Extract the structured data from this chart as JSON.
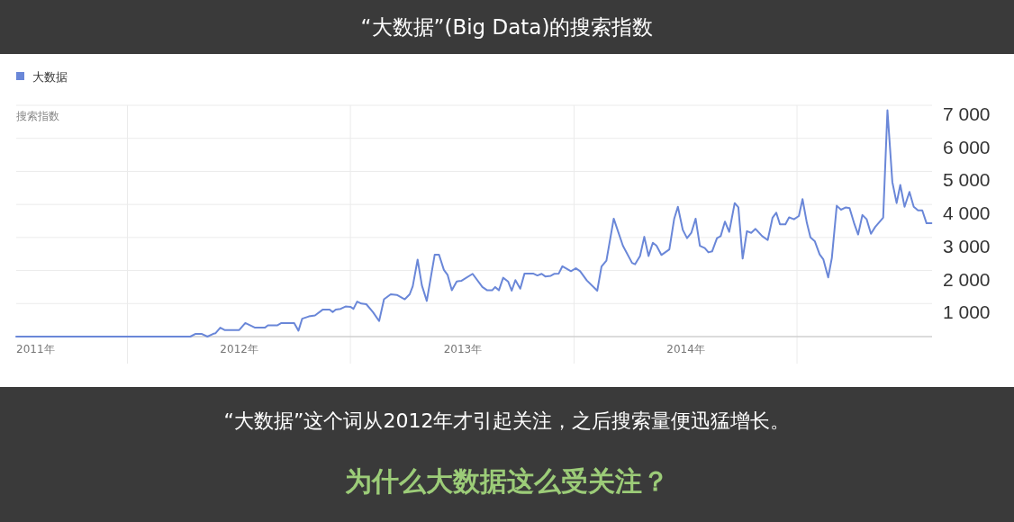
{
  "chart_data": {
    "type": "line",
    "title": "“大数据”(Big Data)的搜索指数",
    "ylabel": "搜索指数",
    "annotations": [
      "“大数据”这个词从2012年才引起关注，之后搜索量便迅猛增长。",
      "为什么大数据这么受关注？"
    ],
    "legend": "top left",
    "grid": true,
    "marker": "none",
    "line_style": "solid",
    "xlim": [
      "2011-01-01",
      "2015-02-08"
    ],
    "xticks": [
      {
        "value": "2011-01-01",
        "label": "2011年"
      },
      {
        "value": "2011-07-02",
        "label": null
      },
      {
        "value": "2012-01-01",
        "label": "2012年"
      },
      {
        "value": "2012-07-01",
        "label": null
      },
      {
        "value": "2013-01-01",
        "label": "2013年"
      },
      {
        "value": "2013-07-02",
        "label": null
      },
      {
        "value": "2014-01-01",
        "label": "2014年"
      },
      {
        "value": "2014-07-02",
        "label": null
      }
    ],
    "ylim": [
      0,
      7000
    ],
    "yticks": [
      {
        "value": 1000,
        "label": "1 000"
      },
      {
        "value": 2000,
        "label": "2 000"
      },
      {
        "value": 3000,
        "label": "3 000"
      },
      {
        "value": 4000,
        "label": "4 000"
      },
      {
        "value": 5000,
        "label": "5 000"
      },
      {
        "value": 6000,
        "label": "6 000"
      },
      {
        "value": 7000,
        "label": "7 000"
      }
    ],
    "x": [
      "2011-01-01",
      "2011-06-01",
      "2011-10-13",
      "2011-10-21",
      "2011-11-01",
      "2011-11-10",
      "2011-11-19",
      "2011-11-23",
      "2011-12-01",
      "2011-12-08",
      "2012-01-01",
      "2012-01-11",
      "2012-01-27",
      "2012-02-12",
      "2012-02-17",
      "2012-03-03",
      "2012-03-10",
      "2012-03-31",
      "2012-04-07",
      "2012-04-13",
      "2012-04-24",
      "2012-05-04",
      "2012-05-17",
      "2012-05-28",
      "2012-06-02",
      "2012-06-07",
      "2012-06-15",
      "2012-06-23",
      "2012-07-01",
      "2012-07-06",
      "2012-07-12",
      "2012-07-19",
      "2012-07-27",
      "2012-08-07",
      "2012-08-17",
      "2012-08-25",
      "2012-09-05",
      "2012-09-15",
      "2012-09-28",
      "2012-10-06",
      "2012-10-11",
      "2012-10-19",
      "2012-10-26",
      "2012-11-03",
      "2012-11-16",
      "2012-11-23",
      "2012-12-01",
      "2012-12-07",
      "2012-12-14",
      "2012-12-22",
      "2012-12-30",
      "2013-01-17",
      "2013-02-02",
      "2013-02-10",
      "2013-02-18",
      "2013-02-23",
      "2013-03-01",
      "2013-03-08",
      "2013-03-16",
      "2013-03-22",
      "2013-03-28",
      "2013-04-05",
      "2013-04-12",
      "2013-04-26",
      "2013-05-03",
      "2013-05-10",
      "2013-05-16",
      "2013-05-25",
      "2013-05-31",
      "2013-06-07",
      "2013-06-13",
      "2013-06-27",
      "2013-07-05",
      "2013-07-12",
      "2013-07-23",
      "2013-08-09",
      "2013-08-16",
      "2013-08-24",
      "2013-09-05",
      "2013-09-20",
      "2013-10-05",
      "2013-10-10",
      "2013-10-18",
      "2013-10-25",
      "2013-11-01",
      "2013-11-08",
      "2013-11-14",
      "2013-11-22",
      "2013-12-05",
      "2013-12-13",
      "2013-12-19",
      "2013-12-27",
      "2014-01-03",
      "2014-01-10",
      "2014-01-17",
      "2014-01-24",
      "2014-02-01",
      "2014-02-07",
      "2014-02-13",
      "2014-02-21",
      "2014-02-27",
      "2014-03-06",
      "2014-03-13",
      "2014-03-22",
      "2014-03-28",
      "2014-04-04",
      "2014-04-11",
      "2014-04-18",
      "2014-04-25",
      "2014-05-06",
      "2014-05-15",
      "2014-05-23",
      "2014-05-29",
      "2014-06-04",
      "2014-06-13",
      "2014-06-19",
      "2014-06-27",
      "2014-07-05",
      "2014-07-11",
      "2014-07-18",
      "2014-07-24",
      "2014-07-31",
      "2014-08-08",
      "2014-08-14",
      "2014-08-22",
      "2014-08-28",
      "2014-09-05",
      "2014-09-12",
      "2014-09-20",
      "2014-09-26",
      "2014-10-04",
      "2014-10-10",
      "2014-10-17",
      "2014-10-24",
      "2014-10-31",
      "2014-11-07",
      "2014-11-20",
      "2014-11-27",
      "2014-12-05",
      "2014-12-12",
      "2014-12-18",
      "2014-12-25",
      "2015-01-02",
      "2015-01-09",
      "2015-01-16",
      "2015-01-23",
      "2015-01-30",
      "2015-02-07"
    ],
    "series": [
      {
        "name": "大数据",
        "color": "#6a87d8",
        "values": [
          0,
          0,
          0,
          80,
          80,
          0,
          80,
          100,
          270,
          200,
          200,
          410,
          270,
          270,
          340,
          340,
          410,
          410,
          180,
          540,
          610,
          640,
          820,
          820,
          740,
          820,
          840,
          910,
          900,
          840,
          1060,
          1000,
          980,
          740,
          470,
          1130,
          1280,
          1260,
          1130,
          1280,
          1520,
          2330,
          1550,
          1080,
          2480,
          2480,
          2020,
          1870,
          1400,
          1670,
          1690,
          1900,
          1500,
          1400,
          1400,
          1500,
          1400,
          1780,
          1670,
          1390,
          1710,
          1450,
          1910,
          1910,
          1850,
          1900,
          1820,
          1840,
          1900,
          1910,
          2130,
          1980,
          2070,
          1980,
          1700,
          1390,
          2120,
          2300,
          3570,
          2750,
          2230,
          2190,
          2440,
          3020,
          2440,
          2840,
          2750,
          2470,
          2640,
          3570,
          3930,
          3230,
          2980,
          3140,
          3570,
          2750,
          2680,
          2550,
          2580,
          2980,
          3040,
          3480,
          3170,
          4040,
          3910,
          2360,
          3190,
          3140,
          3260,
          3040,
          2920,
          3600,
          3750,
          3400,
          3400,
          3610,
          3550,
          3650,
          4160,
          3450,
          3000,
          2890,
          2490,
          2340,
          1790,
          2380,
          3960,
          3840,
          3910,
          3890,
          3400,
          3090,
          3680,
          3550,
          3110,
          3320,
          3600,
          6850,
          4680,
          4040,
          4590,
          3930,
          4380,
          3930,
          3820,
          3820,
          3430,
          3430
        ]
      }
    ]
  }
}
